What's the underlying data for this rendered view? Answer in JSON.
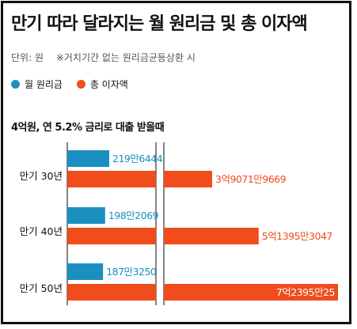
{
  "title": "만기 따라 달라지는 월 원리금 및 총 이자액",
  "units_label": "단위: 원",
  "note": "※거치기간 없는 원리금균등상환 시",
  "legend": [
    {
      "label": "월 원리금",
      "color": "#1b8fbf"
    },
    {
      "label": "총 이자액",
      "color": "#f04c1c"
    }
  ],
  "subtitle": "4억원, 연 5.2% 금리로 대출 받을때",
  "chart_data": {
    "type": "bar",
    "orientation": "horizontal",
    "axis_break": true,
    "categories": [
      "만기 30년",
      "만기 40년",
      "만기 50년"
    ],
    "series": [
      {
        "name": "월 원리금",
        "color": "#1b8fbf",
        "values": [
          2196444,
          1982069,
          1873250
        ],
        "labels": [
          "219만6444",
          "198만2069",
          "187만3250"
        ]
      },
      {
        "name": "총 이자액",
        "color": "#f04c1c",
        "values": [
          390719669,
          513953047,
          723950025
        ],
        "labels": [
          "3억9071만9669",
          "5억1395만3047",
          "7억2395만25"
        ]
      }
    ]
  }
}
